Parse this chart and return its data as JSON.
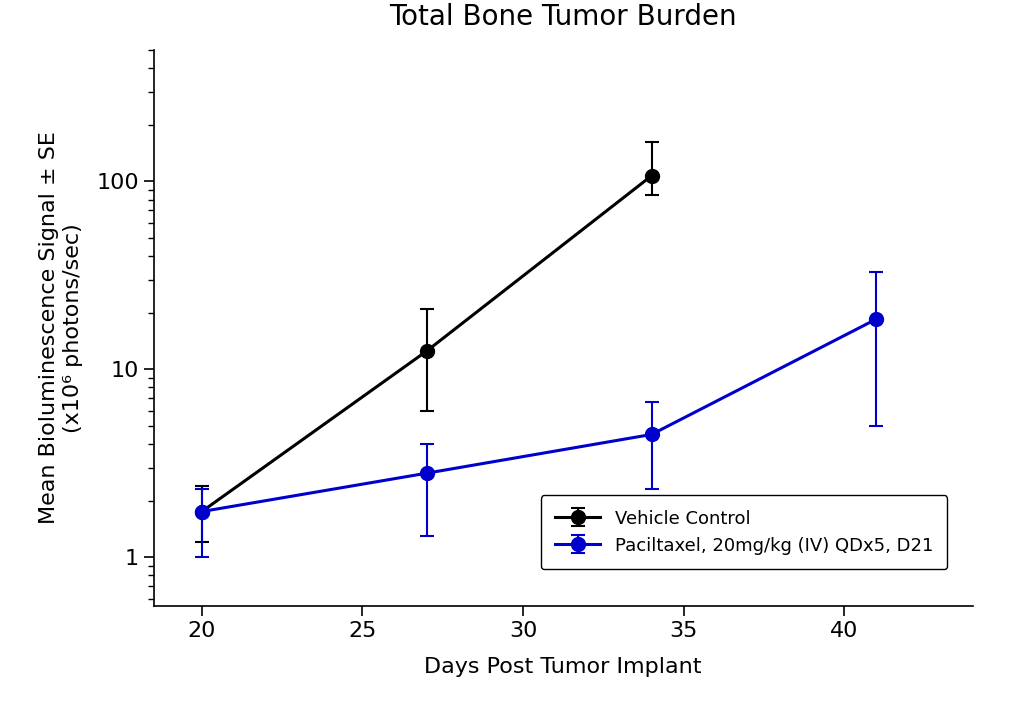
{
  "title": "Total Bone Tumor Burden",
  "xlabel": "Days Post Tumor Implant",
  "ylabel": "Mean Bioluminescence Signal ± SE\n(x10⁶ photons/sec)",
  "black_x": [
    20,
    27,
    34
  ],
  "black_y": [
    1.75,
    12.5,
    107
  ],
  "black_yerr_lo": [
    0.55,
    6.5,
    22
  ],
  "black_yerr_hi": [
    0.65,
    8.5,
    55
  ],
  "blue_x": [
    20,
    27,
    34,
    41
  ],
  "blue_y": [
    1.75,
    2.8,
    4.5,
    18.5
  ],
  "blue_yerr_lo": [
    0.75,
    1.5,
    2.2,
    13.5
  ],
  "blue_yerr_hi": [
    0.55,
    1.2,
    2.2,
    14.5
  ],
  "black_color": "#000000",
  "blue_color": "#0000cc",
  "legend_labels": [
    "Vehicle Control",
    "Paciltaxel, 20mg/kg (IV) QDx5, D21"
  ],
  "ylim_lo": 0.55,
  "ylim_hi": 500,
  "xlim_lo": 18.5,
  "xlim_hi": 44,
  "xticks": [
    20,
    25,
    30,
    35,
    40
  ],
  "marker_size": 10,
  "linewidth": 2.2,
  "title_fontsize": 20,
  "label_fontsize": 16,
  "tick_fontsize": 16
}
